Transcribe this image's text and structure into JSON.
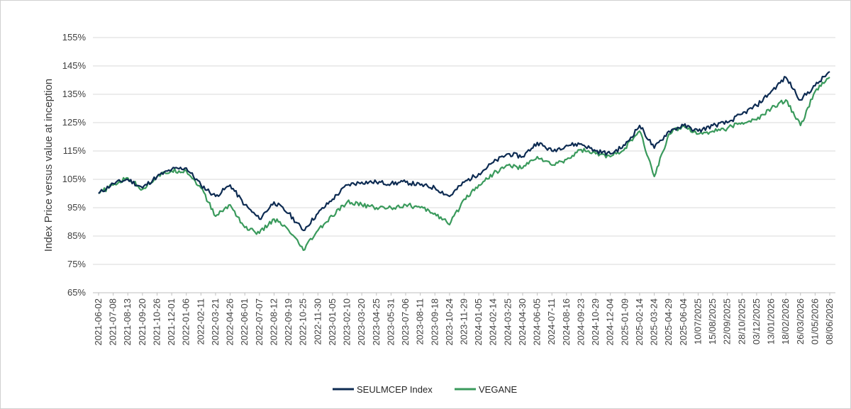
{
  "chart_data": {
    "type": "line",
    "ylabel": "Index Price versus value at inception",
    "xlabel": "",
    "ylim": [
      65,
      155
    ],
    "y_ticks": [
      "65%",
      "75%",
      "85%",
      "95%",
      "105%",
      "115%",
      "125%",
      "135%",
      "145%",
      "155%"
    ],
    "grid": true,
    "legend_position": "bottom",
    "x": [
      "2021-06-02",
      "2021-07-08",
      "2021-08-13",
      "2021-09-20",
      "2021-10-26",
      "2021-12-01",
      "2022-01-06",
      "2022-02-11",
      "2022-03-21",
      "2022-04-26",
      "2022-06-01",
      "2022-07-07",
      "2022-08-12",
      "2022-09-19",
      "2022-10-25",
      "2022-11-30",
      "2023-01-05",
      "2023-02-10",
      "2023-03-20",
      "2023-04-25",
      "2023-05-31",
      "2023-07-06",
      "2023-08-11",
      "2023-09-18",
      "2023-10-24",
      "2023-11-29",
      "2024-01-05",
      "2024-02-14",
      "2024-03-25",
      "2024-04-30",
      "2024-06-05",
      "2024-07-11",
      "2024-08-16",
      "2024-09-23",
      "2024-10-29",
      "2024-12-04",
      "2025-01-09",
      "2025-02-14",
      "2025-03-24",
      "2025-04-29",
      "2025-06-04",
      "10/07/2025",
      "15/08/2025",
      "22/09/2025",
      "28/10/2025",
      "03/12/2025",
      "13/01/2026",
      "18/02/2026",
      "26/03/2026",
      "01/05/2026",
      "08/06/2026"
    ],
    "series": [
      {
        "name": "SEULMCEP Index",
        "color": "#0d2b52",
        "values": [
          100,
          103.5,
          105,
          102,
          106,
          108.5,
          109,
          103,
          99,
          103,
          96,
          91,
          97,
          93,
          87,
          93,
          98,
          103,
          104,
          104,
          103.5,
          104,
          103,
          102,
          99,
          104,
          107,
          111,
          114,
          113,
          118,
          115,
          117,
          117.5,
          115,
          114,
          117,
          124,
          116,
          122,
          124,
          122,
          124,
          125,
          128,
          131,
          136,
          141,
          133,
          138,
          143
        ]
      },
      {
        "name": "VEGANE",
        "color": "#3a9a5c",
        "values": [
          100,
          103,
          105.5,
          101.5,
          106,
          108,
          108,
          102,
          92,
          96,
          88,
          86,
          91,
          87,
          80,
          87,
          92,
          97,
          96,
          95,
          95,
          96,
          95,
          93,
          89,
          98,
          103,
          107,
          110,
          109,
          113,
          110,
          112,
          115.5,
          114,
          113,
          116,
          122,
          106,
          121,
          124,
          121,
          122,
          123,
          125,
          126,
          130,
          133,
          124,
          136,
          141
        ]
      }
    ]
  }
}
